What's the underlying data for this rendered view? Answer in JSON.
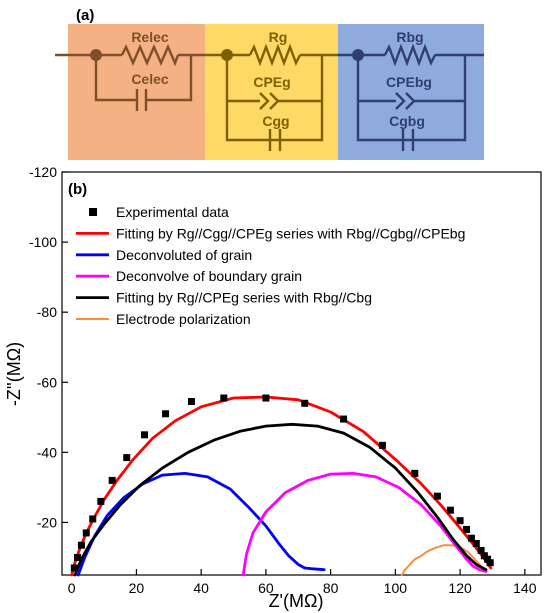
{
  "circuit": {
    "panel_label": "(a)",
    "colors": {
      "elec": "#f4b183",
      "grain": "#ffd966",
      "boundary": "#8faadc",
      "elec_ink": "#7f4f2a",
      "grain_ink": "#7f6000",
      "boundary_ink": "#2f3f6f"
    },
    "sections": [
      {
        "resistor": "Relec",
        "capacitor": "Celec"
      },
      {
        "resistor": "Rg",
        "cpe": "CPEg",
        "capacitor": "Cgg"
      },
      {
        "resistor": "Rbg",
        "cpe": "CPEbg",
        "capacitor": "Cgbg"
      }
    ]
  },
  "chart_data": {
    "type": "scatter",
    "panel_label": "(b)",
    "xlabel": "Z'(MΩ)",
    "ylabel": "-Z''(MΩ)",
    "xlim": [
      -3,
      145
    ],
    "ylim": [
      -5,
      -120
    ],
    "xticks": [
      0,
      20,
      40,
      60,
      80,
      100,
      120,
      140
    ],
    "yticks": [
      -20,
      -40,
      -60,
      -80,
      -100,
      -120
    ],
    "legend_position": "top-left",
    "series": [
      {
        "name": "Experimental data",
        "kind": "markers",
        "color": "#000000",
        "x": [
          0.8,
          1.8,
          3,
          4.5,
          6.5,
          9,
          12.5,
          17,
          22.5,
          29,
          37,
          47,
          60,
          72,
          84,
          96,
          106,
          113,
          117,
          120,
          122,
          123.5,
          125,
          126.5,
          127.5,
          128.5,
          129.3
        ],
        "y": [
          -7,
          -10,
          -13.5,
          -17,
          -21,
          -26,
          -32,
          -38.5,
          -45,
          -51,
          -54.5,
          -55.5,
          -55.5,
          -54,
          -49.5,
          -42,
          -34,
          -27.5,
          -23.5,
          -20.5,
          -18,
          -15.5,
          -14,
          -12,
          -10.5,
          -9.5,
          -8.5
        ]
      },
      {
        "name": "Fitting by Rg//Cgg//CPEg series with Rbg//Cgbg//CPEbg",
        "kind": "line",
        "color": "#ff0000",
        "x": [
          0,
          1,
          2.5,
          4.5,
          7,
          10,
          14,
          19,
          25,
          32,
          40,
          50,
          60,
          70,
          80,
          90,
          100,
          108,
          114,
          119,
          123,
          126,
          128,
          129.5
        ],
        "y": [
          -5,
          -8.5,
          -12.5,
          -17,
          -21.5,
          -26.5,
          -32,
          -38,
          -44,
          -49,
          -53,
          -55.5,
          -55.8,
          -55,
          -51.5,
          -46,
          -38,
          -31,
          -25,
          -19.5,
          -15,
          -11.5,
          -9,
          -7
        ]
      },
      {
        "name": "Deconvoluted of grain",
        "kind": "line",
        "color": "#0000ff",
        "x": [
          2,
          4,
          7,
          11,
          16,
          22,
          28,
          35,
          42,
          49,
          55,
          60,
          64,
          67,
          70,
          72,
          74,
          78
        ],
        "y": [
          -5,
          -10,
          -16,
          -22,
          -27,
          -31,
          -33.5,
          -34,
          -33,
          -29.5,
          -24,
          -19,
          -14,
          -10.5,
          -8,
          -7,
          -6.8,
          -6.5
        ]
      },
      {
        "name": "Deconvolve of boundary grain",
        "kind": "line",
        "color": "#ff00ff",
        "x": [
          53,
          54,
          56,
          60,
          66,
          73,
          80,
          87,
          94,
          101,
          108,
          114,
          119,
          122,
          124,
          126,
          128
        ],
        "y": [
          -5,
          -11,
          -17,
          -23,
          -28.5,
          -32,
          -33.8,
          -34,
          -33,
          -30,
          -25,
          -19,
          -13,
          -9.5,
          -7.5,
          -6.5,
          -6
        ]
      },
      {
        "name": "Fitting by Rg//CPEg series with Rbg//Cbg",
        "kind": "line",
        "color": "#000000",
        "x": [
          1,
          3,
          6,
          10,
          15,
          21,
          28,
          36,
          44,
          52,
          60,
          68,
          76,
          84,
          92,
          100,
          107,
          113,
          118,
          122,
          125,
          128
        ],
        "y": [
          -5,
          -9.5,
          -14.5,
          -19.5,
          -25,
          -30.5,
          -35.5,
          -40,
          -43.5,
          -46,
          -47.5,
          -48,
          -47.5,
          -45.5,
          -41.5,
          -35.5,
          -28.5,
          -21.5,
          -15,
          -10.5,
          -8,
          -6.5
        ]
      },
      {
        "name": "Electrode polarization",
        "kind": "line",
        "color": "#ff8c3a",
        "x": [
          102,
          103,
          104.5,
          106,
          108,
          110,
          112.5,
          115,
          117.5,
          120,
          122.5,
          124.5,
          126,
          127.5
        ],
        "y": [
          -5,
          -6.5,
          -8,
          -9.5,
          -10.5,
          -11.8,
          -12.8,
          -13.5,
          -13.5,
          -13,
          -11.5,
          -9.5,
          -8,
          -6
        ]
      }
    ]
  }
}
